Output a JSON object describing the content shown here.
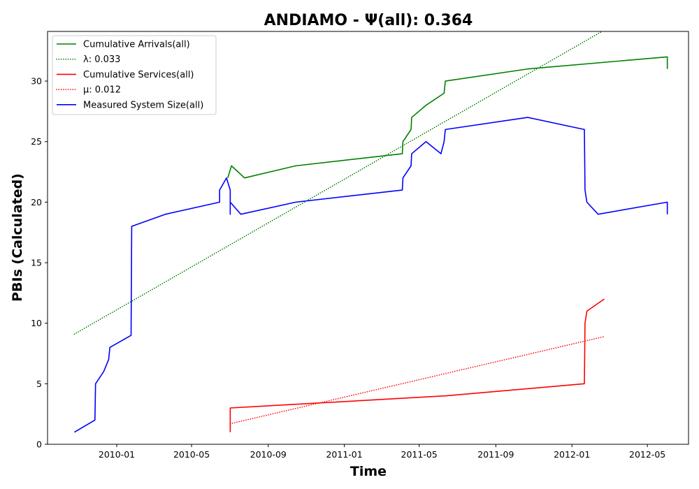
{
  "chart_data": {
    "type": "line",
    "title": "ANDIAMO -  Ψ(all): 0.364",
    "xlabel": "Time",
    "ylabel": "PBIs (Calculated)",
    "xlim": [
      "2009-09-12",
      "2012-07-06"
    ],
    "ylim": [
      0,
      34.1
    ],
    "x_ticks": [
      "2010-01",
      "2010-05",
      "2010-09",
      "2011-01",
      "2011-05",
      "2011-09",
      "2012-01",
      "2012-05"
    ],
    "y_ticks": [
      0,
      5,
      10,
      15,
      20,
      25,
      30
    ],
    "grid": false,
    "legend_position": "upper-left",
    "series": [
      {
        "name": "Cumulative Arrivals(all)",
        "color": "#008000",
        "style": "solid",
        "points": [
          [
            "2010-06-28",
            22
          ],
          [
            "2010-07-04",
            23
          ],
          [
            "2010-07-25",
            22
          ],
          [
            "2010-10-15",
            23
          ],
          [
            "2011-04-04",
            24
          ],
          [
            "2011-04-05",
            25
          ],
          [
            "2011-04-18",
            26
          ],
          [
            "2011-04-19",
            27
          ],
          [
            "2011-05-12",
            28
          ],
          [
            "2011-06-10",
            29
          ],
          [
            "2011-06-12",
            30
          ],
          [
            "2011-10-22",
            31
          ],
          [
            "2012-06-02",
            32
          ],
          [
            "2012-06-02",
            31
          ]
        ]
      },
      {
        "name": "λ: 0.033",
        "color": "#008000",
        "style": "dotted",
        "points": [
          [
            "2009-10-25",
            9.1
          ],
          [
            "2012-02-25",
            34.3
          ]
        ]
      },
      {
        "name": "Cumulative Services(all)",
        "color": "#ff0000",
        "style": "solid",
        "points": [
          [
            "2010-07-02",
            1
          ],
          [
            "2010-07-02",
            3
          ],
          [
            "2011-06-12",
            4
          ],
          [
            "2012-01-21",
            5
          ],
          [
            "2012-01-22",
            10
          ],
          [
            "2012-01-25",
            11
          ],
          [
            "2012-02-22",
            12
          ]
        ]
      },
      {
        "name": "μ: 0.012",
        "color": "#ff0000",
        "style": "dotted",
        "points": [
          [
            "2010-07-02",
            1.7
          ],
          [
            "2012-02-22",
            8.9
          ]
        ]
      },
      {
        "name": "Measured System Size(all)",
        "color": "#0000ff",
        "style": "solid",
        "points": [
          [
            "2009-10-25",
            1
          ],
          [
            "2009-11-27",
            2
          ],
          [
            "2009-11-28",
            5
          ],
          [
            "2009-12-11",
            6
          ],
          [
            "2009-12-19",
            7
          ],
          [
            "2009-12-21",
            8
          ],
          [
            "2010-01-24",
            9
          ],
          [
            "2010-01-25",
            18
          ],
          [
            "2010-03-20",
            19
          ],
          [
            "2010-06-15",
            20
          ],
          [
            "2010-06-15",
            21
          ],
          [
            "2010-06-26",
            22
          ],
          [
            "2010-07-02",
            21
          ],
          [
            "2010-07-02",
            19
          ],
          [
            "2010-07-02",
            20
          ],
          [
            "2010-07-19",
            19
          ],
          [
            "2010-10-15",
            20
          ],
          [
            "2011-04-04",
            21
          ],
          [
            "2011-04-05",
            22
          ],
          [
            "2011-04-18",
            23
          ],
          [
            "2011-04-19",
            24
          ],
          [
            "2011-05-12",
            25
          ],
          [
            "2011-06-05",
            24
          ],
          [
            "2011-06-10",
            25
          ],
          [
            "2011-06-12",
            26
          ],
          [
            "2011-10-22",
            27
          ],
          [
            "2012-01-21",
            26
          ],
          [
            "2012-01-22",
            21
          ],
          [
            "2012-01-25",
            20
          ],
          [
            "2012-02-12",
            19
          ],
          [
            "2012-06-02",
            20
          ],
          [
            "2012-06-02",
            19
          ]
        ]
      }
    ]
  }
}
